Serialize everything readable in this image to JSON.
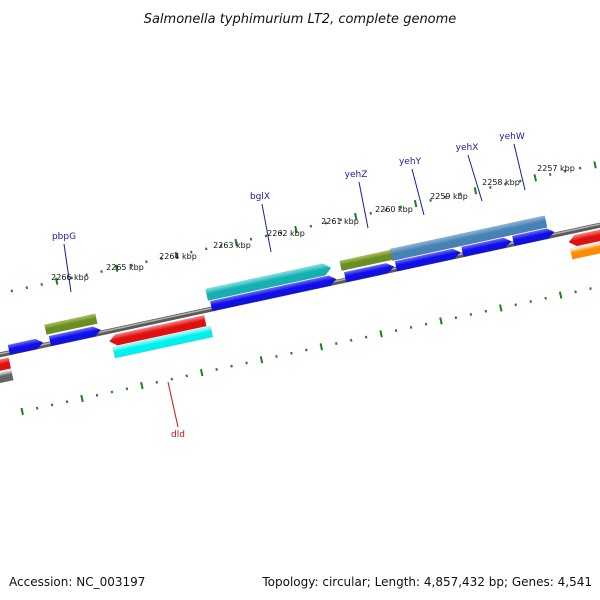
{
  "title": "Salmonella typhimurium LT2, complete genome",
  "footer": {
    "accession": "Accession: NC_003197",
    "summary": "Topology: circular; Length: 4,857,432 bp; Genes: 4,541"
  },
  "colors": {
    "backbone": "#7d7d7d",
    "tick": "#1f7f1f",
    "label_forward": "#1a1aa8",
    "label_reverse": "#cc1111",
    "cds": "#1010e6",
    "cds_light": "#6b6bff",
    "olive": "#6b8e23",
    "olive_light": "#a9c25a",
    "steelblue": "#4682b4",
    "steelblue_light": "#8fb6d9",
    "teal": "#17b0b0",
    "teal_light": "#7fe6e6",
    "red": "#e01010",
    "red_light": "#ff8080",
    "cyan": "#00f0f0",
    "cyan_light": "#b0ffff",
    "orange": "#ff8c00",
    "gray": "#666666"
  },
  "ticks": [
    {
      "label": "2257 kbp"
    },
    {
      "label": "2258 kbp"
    },
    {
      "label": "2259 kbp"
    },
    {
      "label": "2260 kbp"
    },
    {
      "label": "2261 kbp"
    },
    {
      "label": "2262 kbp"
    },
    {
      "label": "2263 kbp"
    },
    {
      "label": "2264 kbp"
    },
    {
      "label": "2265 kbp"
    },
    {
      "label": "2266 kbp"
    }
  ],
  "gene_labels": [
    {
      "name": "yehW",
      "strand": "forward"
    },
    {
      "name": "yehX",
      "strand": "forward"
    },
    {
      "name": "yehY",
      "strand": "forward"
    },
    {
      "name": "yehZ",
      "strand": "forward"
    },
    {
      "name": "bglX",
      "strand": "forward"
    },
    {
      "name": "pbpG",
      "strand": "forward"
    },
    {
      "name": "dld",
      "strand": "reverse"
    }
  ],
  "features": [
    {
      "kind": "gene",
      "strand": "forward",
      "color": "olive",
      "ring": 2
    },
    {
      "kind": "cds",
      "strand": "forward",
      "color": "cds",
      "ring": 1
    },
    {
      "kind": "gene",
      "strand": "forward",
      "color": "teal",
      "ring": 2
    },
    {
      "kind": "cds",
      "strand": "forward",
      "color": "cds",
      "ring": 1
    },
    {
      "kind": "gene",
      "strand": "forward",
      "color": "olive",
      "ring": 2
    },
    {
      "kind": "gene",
      "strand": "forward",
      "color": "steelblue",
      "ring": 2
    },
    {
      "kind": "cds",
      "strand": "forward",
      "color": "cds",
      "ring": 1
    },
    {
      "kind": "cds",
      "strand": "forward",
      "color": "cds",
      "ring": 1
    },
    {
      "kind": "cds",
      "strand": "forward",
      "color": "cds",
      "ring": 1
    },
    {
      "kind": "cds",
      "strand": "forward",
      "color": "cds",
      "ring": 1
    },
    {
      "kind": "cds",
      "strand": "forward",
      "color": "cds",
      "ring": 1
    },
    {
      "kind": "gene",
      "strand": "reverse",
      "color": "red",
      "ring": 1
    },
    {
      "kind": "cds",
      "strand": "reverse",
      "color": "cyan",
      "ring": 2
    },
    {
      "kind": "gene",
      "strand": "reverse",
      "color": "red",
      "ring": 1
    },
    {
      "kind": "gene",
      "strand": "reverse",
      "color": "red",
      "ring": 1
    },
    {
      "kind": "cds",
      "strand": "reverse",
      "color": "orange",
      "ring": 2
    },
    {
      "kind": "cds",
      "strand": "reverse",
      "color": "gray",
      "ring": 2
    }
  ]
}
